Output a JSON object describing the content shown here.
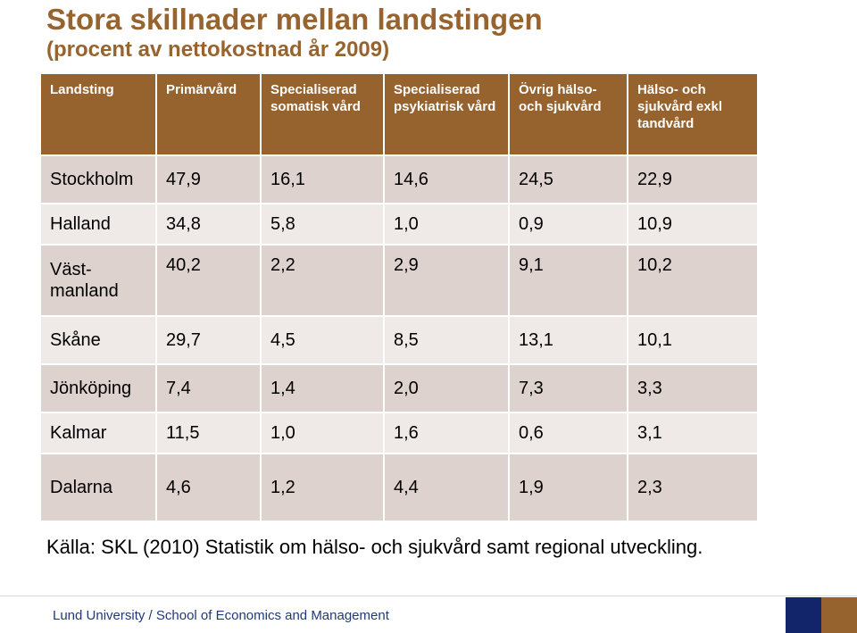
{
  "slide": {
    "title": "Stora skillnader mellan landstingen",
    "subtitle": "(procent av nettokostnad år 2009)",
    "source": "Källa: SKL (2010) Statistik om hälso- och sjukvård samt regional utveckling.",
    "footer": "Lund University / School of Economics and Management"
  },
  "table": {
    "headers": [
      "Landsting",
      "Primärvård",
      "Specialiserad somatisk vård",
      "Specialiserad psykiatrisk vård",
      "Övrig hälso- och sjukvård",
      "Hälso- och sjukvård exkl tandvård"
    ],
    "rows": [
      [
        "Stockholm",
        "47,9",
        "16,1",
        "14,6",
        "24,5",
        "22,9"
      ],
      [
        "Halland",
        "34,8",
        "5,8",
        "1,0",
        "0,9",
        "10,9"
      ],
      [
        "Väst-manland",
        "40,2",
        "2,2",
        "2,9",
        "9,1",
        "10,2"
      ],
      [
        "Skåne",
        "29,7",
        "4,5",
        "8,5",
        "13,1",
        "10,1"
      ],
      [
        "Jönköping",
        "7,4",
        "1,4",
        "2,0",
        "7,3",
        "3,3"
      ],
      [
        "Kalmar",
        "11,5",
        "1,0",
        "1,6",
        "0,6",
        "3,1"
      ],
      [
        "Dalarna",
        "4,6",
        "1,2",
        "4,4",
        "1,9",
        "2,3"
      ]
    ]
  },
  "colors": {
    "title": "#97632f",
    "header_bg": "#96622e",
    "row_dark": "#ddd2ce",
    "row_light": "#efe9e7",
    "footer_text": "#1f3a7a",
    "logo_blue": "#12246a",
    "logo_brown": "#96622e"
  }
}
